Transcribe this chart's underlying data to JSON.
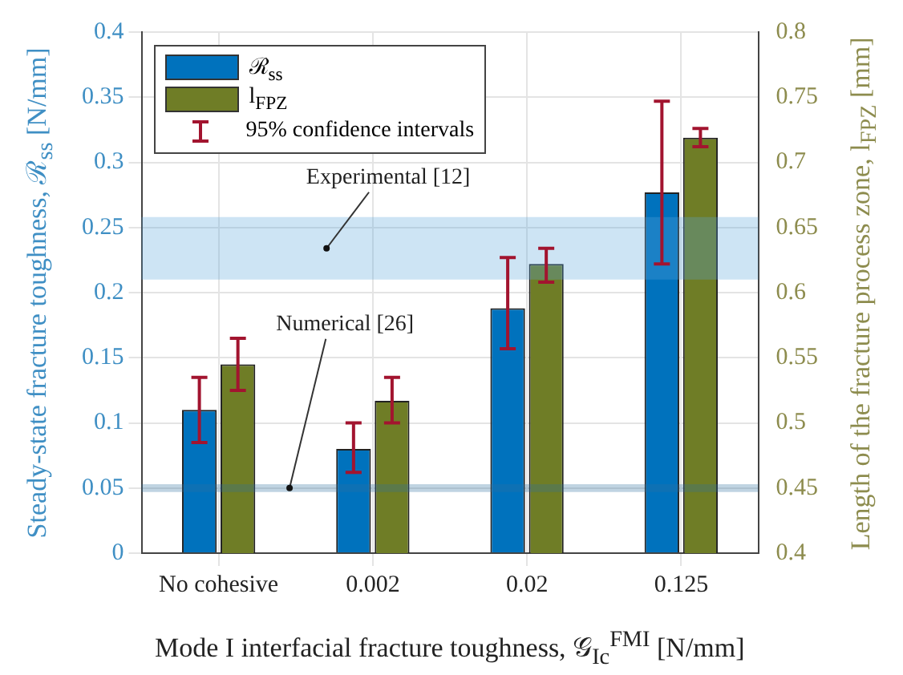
{
  "chart_data": {
    "type": "bar",
    "xlabel": "Mode I interfacial fracture toughness, 𝒢$_{Ic}$$^{FMI}$ [N/mm]",
    "ylabel": "Steady-state fracture toughness, ℛ$_{ss}$ [N/mm]",
    "y2label": "Length of the fracture process zone, l$_{FPZ}$ [mm]",
    "categories": [
      "No cohesive",
      "0.002",
      "0.02",
      "0.125"
    ],
    "series": [
      {
        "name": "ℛ$_{ss}$",
        "color": "#0072bd",
        "values": [
          0.11,
          0.08,
          0.188,
          0.277
        ],
        "errors": [
          [
            0.085,
            0.135
          ],
          [
            0.062,
            0.1
          ],
          [
            0.157,
            0.227
          ],
          [
            0.222,
            0.347
          ]
        ]
      },
      {
        "name": "l$_{FPZ}$",
        "color": "#6f7d26",
        "axis": "y2",
        "values": [
          0.545,
          0.517,
          0.622,
          0.719
        ],
        "errors": [
          [
            0.525,
            0.565
          ],
          [
            0.5,
            0.535
          ],
          [
            0.608,
            0.634
          ],
          [
            0.712,
            0.726
          ]
        ]
      }
    ],
    "ylim": [
      0,
      0.4
    ],
    "yticks": [
      0,
      0.05,
      0.1,
      0.15,
      0.2,
      0.25,
      0.3,
      0.35,
      0.4
    ],
    "y2lim": [
      0.4,
      0.8
    ],
    "y2ticks": [
      0.4,
      0.45,
      0.5,
      0.55,
      0.6,
      0.65,
      0.7,
      0.75,
      0.8
    ],
    "bands": [
      {
        "axis": "y",
        "from": 0.21,
        "to": 0.258,
        "label": "Experimental [12]",
        "color": "#5aa5dc"
      },
      {
        "axis": "y",
        "from": 0.047,
        "to": 0.053,
        "label": "Numerical [26]",
        "color": "#2f6f9f"
      }
    ],
    "annotations": [
      "95% confidence intervals"
    ],
    "grid": true,
    "legend": "top left"
  }
}
